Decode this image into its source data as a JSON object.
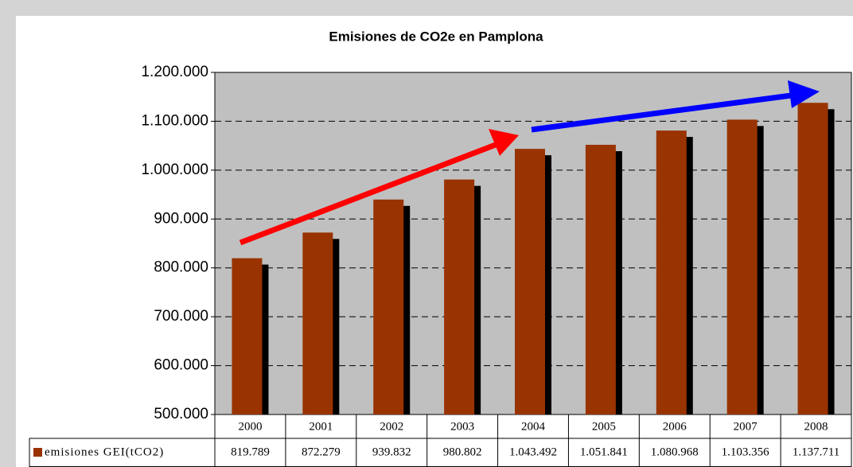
{
  "chart_data": {
    "type": "bar",
    "title": "Emisiones de CO2e en Pamplona",
    "categories": [
      "2000",
      "2001",
      "2002",
      "2003",
      "2004",
      "2005",
      "2006",
      "2007",
      "2008"
    ],
    "series": [
      {
        "name": "emisiones GEI(tCO2)",
        "color": "#993300",
        "values": [
          819789,
          872279,
          939832,
          980802,
          1043492,
          1051841,
          1080968,
          1103356,
          1137711
        ],
        "value_labels": [
          "819.789",
          "872.279",
          "939.832",
          "980.802",
          "1.043.492",
          "1.051.841",
          "1.080.968",
          "1.103.356",
          "1.137.711"
        ]
      }
    ],
    "ylim": [
      500000,
      1200000
    ],
    "yticks": [
      {
        "value": 500000,
        "label": "500.000"
      },
      {
        "value": 600000,
        "label": "600.000"
      },
      {
        "value": 700000,
        "label": "700.000"
      },
      {
        "value": 800000,
        "label": "800.000"
      },
      {
        "value": 900000,
        "label": "900.000"
      },
      {
        "value": 1000000,
        "label": "1.000.000"
      },
      {
        "value": 1100000,
        "label": "1.100.000"
      },
      {
        "value": 1200000,
        "label": "1.200.000"
      }
    ],
    "grid": true
  }
}
